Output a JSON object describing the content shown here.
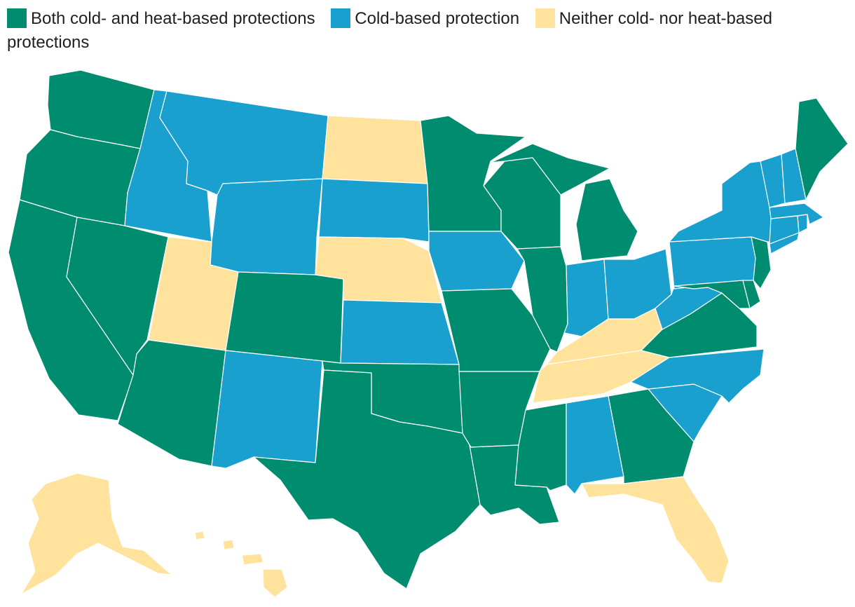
{
  "legend": {
    "items": [
      {
        "label": "Both cold- and heat-based protections",
        "color": "#008c6e"
      },
      {
        "label": "Cold-based protection",
        "color": "#1aa0cf"
      },
      {
        "label": "Neither cold- nor heat-based protections",
        "color": "#ffe29b"
      }
    ]
  },
  "states": {
    "WA": "both",
    "OR": "both",
    "CA": "both",
    "NV": "both",
    "ID": "cold",
    "MT": "cold",
    "WY": "cold",
    "UT": "neither",
    "AZ": "both",
    "CO": "both",
    "NM": "cold",
    "ND": "neither",
    "SD": "cold",
    "NE": "neither",
    "KS": "cold",
    "OK": "both",
    "TX": "both",
    "MN": "both",
    "IA": "cold",
    "MO": "both",
    "AR": "both",
    "LA": "both",
    "WI": "both",
    "IL": "both",
    "MS": "both",
    "MI": "both",
    "IN": "cold",
    "OH": "cold",
    "KY": "neither",
    "TN": "neither",
    "AL": "cold",
    "GA": "both",
    "FL": "neither",
    "SC": "cold",
    "NC": "cold",
    "VA": "both",
    "WV": "cold",
    "PA": "cold",
    "NY": "cold",
    "VT": "cold",
    "NH": "cold",
    "ME": "both",
    "MA": "cold",
    "CT": "cold",
    "RI": "cold",
    "NJ": "both",
    "DE": "both",
    "MD": "both",
    "AK": "neither",
    "HI": "neither"
  }
}
